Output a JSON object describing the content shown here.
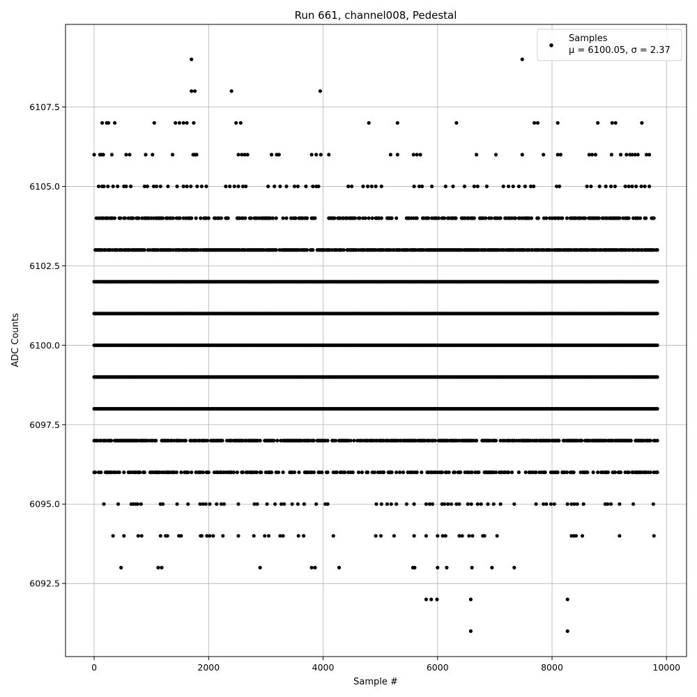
{
  "chart_data": {
    "type": "scatter",
    "title": "Run 661, channel008, Pedestal",
    "xlabel": "Sample #",
    "ylabel": "ADC Counts",
    "xlim": [
      -500,
      10350
    ],
    "ylim": [
      6090.2,
      6110.1
    ],
    "x_ticks": [
      0,
      2000,
      4000,
      6000,
      8000,
      10000
    ],
    "y_ticks": [
      6092.5,
      6095.0,
      6097.5,
      6100.0,
      6102.5,
      6105.0,
      6107.5
    ],
    "x_tick_labels": [
      "0",
      "2000",
      "4000",
      "6000",
      "8000",
      "10000"
    ],
    "y_tick_labels": [
      "6092.5",
      "6095.0",
      "6097.5",
      "6100.0",
      "6102.5",
      "6105.0",
      "6107.5"
    ],
    "grid": true,
    "legend_position": "top-right",
    "series": [
      {
        "name": "Samples",
        "stats_label": "μ = 6100.05, σ = 2.37",
        "color": "#000000",
        "mean": 6100.05,
        "sigma": 2.37,
        "n_samples": 9850,
        "levels": [
          {
            "y": 6109,
            "x": [
              1700,
              7480
            ]
          },
          {
            "y": 6108,
            "x": [
              1700,
              1760,
              2400,
              3950
            ]
          },
          {
            "y": 6107,
            "x": [
              140,
              220,
              250,
              360,
              1050,
              1420,
              1490,
              1560,
              1620,
              1740,
              2480,
              2560,
              4800,
              5300,
              6330,
              7690,
              7750,
              8100,
              8800,
              9050,
              9110,
              9570
            ]
          },
          {
            "y": 6106,
            "x": [
              0,
              100,
              130,
              160,
              310,
              560,
              620,
              900,
              1020,
              1370,
              1730,
              1760,
              1790,
              2520,
              2580,
              2630,
              2680,
              3100,
              3190,
              3230,
              3800,
              3880,
              3960,
              4100,
              5180,
              5300,
              5580,
              5640,
              5700,
              6680,
              7020,
              7480,
              7850,
              8100,
              8150,
              8650,
              8700,
              8760,
              9040,
              9200,
              9300,
              9360,
              9400,
              9450,
              9500,
              9650,
              9700
            ]
          },
          {
            "y": 6105,
            "x": [
              80,
              140,
              170,
              240,
              330,
              410,
              520,
              560,
              640,
              880,
              930,
              1040,
              1090,
              1160,
              1290,
              1450,
              1560,
              1620,
              1690,
              1800,
              1880,
              1960,
              2300,
              2370,
              2450,
              2520,
              2600,
              2650,
              3040,
              3150,
              3250,
              3360,
              3500,
              3560,
              3700,
              3820,
              3880,
              3920,
              4440,
              4500,
              4700,
              4780,
              4850,
              4920,
              5020,
              5590,
              5680,
              5730,
              5900,
              6140,
              6270,
              6470,
              6640,
              6700,
              6860,
              7150,
              7240,
              7320,
              7420,
              7530,
              7630,
              7680,
              8080,
              8130,
              8610,
              8680,
              8830,
              8940,
              9030,
              9100,
              9280,
              9340,
              9400,
              9470,
              9560,
              9620,
              9700
            ]
          }
        ],
        "dense_levels": [
          {
            "y": 6104,
            "density": 0.5
          },
          {
            "y": 6103,
            "density": 0.85
          },
          {
            "y": 6102,
            "density": 1.0
          },
          {
            "y": 6101,
            "density": 1.0
          },
          {
            "y": 6100,
            "density": 1.0
          },
          {
            "y": 6099,
            "density": 1.0
          },
          {
            "y": 6098,
            "density": 1.0
          },
          {
            "y": 6097,
            "density": 0.75
          },
          {
            "y": 6096,
            "density": 0.5
          }
        ],
        "sparse_levels": [
          {
            "y": 6095,
            "x": [
              170,
              420,
              650,
              690,
              730,
              760,
              820,
              1160,
              1200,
              1450,
              1640,
              1850,
              1900,
              1950,
              2020,
              2140,
              2220,
              2270,
              2520,
              2800,
              2850,
              3020,
              3160,
              3270,
              3320,
              3460,
              3560,
              3670,
              3880,
              4040,
              4080,
              4930,
              5020,
              5120,
              5190,
              5280,
              5460,
              5590,
              5800,
              5860,
              5910,
              6080,
              6120,
              6180,
              6240,
              6330,
              6380,
              6530,
              6590,
              6700,
              6760,
              6880,
              6980,
              7100,
              7340,
              7720,
              7850,
              7900,
              7980,
              8040,
              8270,
              8340,
              8390,
              8440,
              8550,
              8930,
              8970,
              9030,
              9180,
              9420,
              9770
            ]
          },
          {
            "y": 6094,
            "x": [
              330,
              520,
              770,
              830,
              1160,
              1250,
              1280,
              1480,
              1520,
              1860,
              1880,
              1970,
              2020,
              2080,
              2250,
              2520,
              2790,
              2980,
              3050,
              3250,
              3300,
              3570,
              3660,
              4180,
              4920,
              5010,
              5240,
              5590,
              5800,
              6000,
              6090,
              6140,
              6380,
              6430,
              6550,
              6610,
              6790,
              6820,
              7040,
              8340,
              8380,
              8420,
              8530,
              9180,
              9780
            ]
          },
          {
            "y": 6093,
            "x": [
              470,
              1120,
              1180,
              2900,
              3800,
              3860,
              4280,
              5570,
              5600,
              6000,
              6160,
              6600,
              6950,
              7340
            ]
          },
          {
            "y": 6092,
            "x": [
              5800,
              5890,
              5990,
              6580,
              8270
            ]
          },
          {
            "y": 6091,
            "x": [
              6580,
              8270
            ]
          }
        ]
      }
    ]
  }
}
